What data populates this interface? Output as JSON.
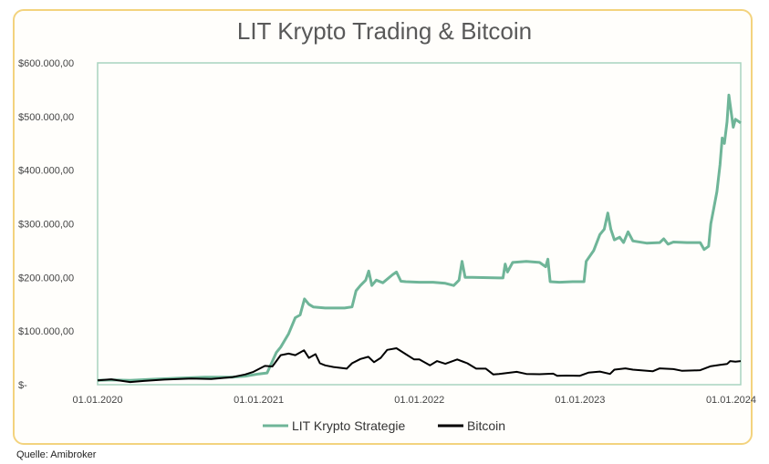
{
  "chart_data": {
    "type": "line",
    "title": "LIT Krypto Trading & Bitcoin",
    "xlabel": "",
    "ylabel": "",
    "ylim": [
      0,
      600000
    ],
    "yticks": [
      0,
      100000,
      200000,
      300000,
      400000,
      500000,
      600000
    ],
    "ytick_labels": [
      "$-",
      "$100.000,00",
      "$200.000,00",
      "$300.000,00",
      "$400.000,00",
      "$500.000,00",
      "$600.000,00"
    ],
    "xlim": [
      "2020-01-01",
      "2024-01-01"
    ],
    "xticks": [
      "2020-01-01",
      "2021-01-01",
      "2022-01-01",
      "2023-01-01",
      "2024-01-01"
    ],
    "xtick_labels": [
      "01.01.2020",
      "01.01.2021",
      "01.01.2022",
      "01.01.2023",
      "01.01.2024"
    ],
    "legend_position": "bottom",
    "grid": false,
    "series": [
      {
        "name": "LIT Krypto Strategie",
        "color": "#6fb598",
        "points": [
          [
            "2020-01-01",
            8000
          ],
          [
            "2020-02-01",
            9000
          ],
          [
            "2020-03-15",
            8000
          ],
          [
            "2020-05-01",
            10000
          ],
          [
            "2020-07-01",
            12000
          ],
          [
            "2020-09-01",
            14000
          ],
          [
            "2020-11-01",
            14000
          ],
          [
            "2020-12-01",
            16000
          ],
          [
            "2021-01-01",
            20000
          ],
          [
            "2021-01-20",
            22000
          ],
          [
            "2021-02-10",
            60000
          ],
          [
            "2021-02-20",
            70000
          ],
          [
            "2021-03-10",
            95000
          ],
          [
            "2021-03-25",
            125000
          ],
          [
            "2021-04-05",
            130000
          ],
          [
            "2021-04-15",
            160000
          ],
          [
            "2021-04-25",
            150000
          ],
          [
            "2021-05-05",
            145000
          ],
          [
            "2021-06-01",
            143000
          ],
          [
            "2021-07-15",
            143000
          ],
          [
            "2021-08-01",
            145000
          ],
          [
            "2021-08-10",
            175000
          ],
          [
            "2021-08-20",
            185000
          ],
          [
            "2021-09-01",
            195000
          ],
          [
            "2021-09-08",
            212000
          ],
          [
            "2021-09-15",
            185000
          ],
          [
            "2021-09-25",
            195000
          ],
          [
            "2021-10-10",
            190000
          ],
          [
            "2021-11-01",
            205000
          ],
          [
            "2021-11-10",
            210000
          ],
          [
            "2021-11-20",
            193000
          ],
          [
            "2021-12-01",
            192000
          ],
          [
            "2022-01-01",
            191000
          ],
          [
            "2022-02-01",
            191000
          ],
          [
            "2022-03-01",
            189000
          ],
          [
            "2022-03-20",
            185000
          ],
          [
            "2022-04-01",
            195000
          ],
          [
            "2022-04-08",
            230000
          ],
          [
            "2022-04-15",
            200000
          ],
          [
            "2022-05-01",
            200000
          ],
          [
            "2022-07-01",
            199000
          ],
          [
            "2022-07-10",
            199000
          ],
          [
            "2022-07-15",
            225000
          ],
          [
            "2022-07-20",
            210000
          ],
          [
            "2022-08-01",
            228000
          ],
          [
            "2022-09-01",
            230000
          ],
          [
            "2022-10-01",
            228000
          ],
          [
            "2022-10-15",
            220000
          ],
          [
            "2022-10-20",
            234000
          ],
          [
            "2022-10-25",
            192000
          ],
          [
            "2022-11-15",
            191000
          ],
          [
            "2022-12-15",
            192000
          ],
          [
            "2023-01-10",
            192000
          ],
          [
            "2023-01-15",
            230000
          ],
          [
            "2023-02-01",
            250000
          ],
          [
            "2023-02-15",
            280000
          ],
          [
            "2023-02-25",
            290000
          ],
          [
            "2023-03-05",
            320000
          ],
          [
            "2023-03-12",
            290000
          ],
          [
            "2023-03-20",
            270000
          ],
          [
            "2023-04-01",
            275000
          ],
          [
            "2023-04-10",
            265000
          ],
          [
            "2023-04-20",
            285000
          ],
          [
            "2023-05-01",
            268000
          ],
          [
            "2023-06-01",
            264000
          ],
          [
            "2023-07-01",
            265000
          ],
          [
            "2023-07-10",
            272000
          ],
          [
            "2023-07-20",
            262000
          ],
          [
            "2023-08-01",
            266000
          ],
          [
            "2023-09-01",
            265000
          ],
          [
            "2023-10-01",
            265000
          ],
          [
            "2023-10-10",
            252000
          ],
          [
            "2023-10-20",
            258000
          ],
          [
            "2023-10-25",
            300000
          ],
          [
            "2023-11-01",
            330000
          ],
          [
            "2023-11-08",
            360000
          ],
          [
            "2023-11-15",
            410000
          ],
          [
            "2023-11-20",
            460000
          ],
          [
            "2023-11-25",
            450000
          ],
          [
            "2023-12-01",
            490000
          ],
          [
            "2023-12-05",
            540000
          ],
          [
            "2023-12-10",
            510000
          ],
          [
            "2023-12-15",
            480000
          ],
          [
            "2023-12-20",
            495000
          ],
          [
            "2024-01-01",
            488000
          ]
        ]
      },
      {
        "name": "Bitcoin",
        "color": "#000000",
        "points": [
          [
            "2020-01-01",
            8000
          ],
          [
            "2020-02-01",
            10000
          ],
          [
            "2020-03-15",
            5000
          ],
          [
            "2020-04-15",
            7000
          ],
          [
            "2020-06-01",
            9500
          ],
          [
            "2020-08-01",
            11500
          ],
          [
            "2020-09-15",
            10500
          ],
          [
            "2020-11-01",
            14000
          ],
          [
            "2020-12-01",
            19000
          ],
          [
            "2020-12-20",
            24000
          ],
          [
            "2021-01-01",
            29000
          ],
          [
            "2021-01-15",
            35000
          ],
          [
            "2021-02-01",
            34000
          ],
          [
            "2021-02-20",
            55000
          ],
          [
            "2021-03-10",
            58000
          ],
          [
            "2021-03-25",
            55000
          ],
          [
            "2021-04-14",
            64000
          ],
          [
            "2021-04-25",
            50000
          ],
          [
            "2021-05-10",
            57000
          ],
          [
            "2021-05-20",
            40000
          ],
          [
            "2021-06-01",
            36000
          ],
          [
            "2021-06-20",
            33000
          ],
          [
            "2021-07-20",
            30000
          ],
          [
            "2021-08-01",
            40000
          ],
          [
            "2021-08-20",
            48000
          ],
          [
            "2021-09-07",
            52000
          ],
          [
            "2021-09-20",
            42000
          ],
          [
            "2021-10-05",
            50000
          ],
          [
            "2021-10-20",
            65000
          ],
          [
            "2021-11-10",
            68000
          ],
          [
            "2021-12-01",
            57000
          ],
          [
            "2021-12-20",
            47000
          ],
          [
            "2022-01-01",
            47000
          ],
          [
            "2022-01-25",
            36000
          ],
          [
            "2022-02-10",
            44000
          ],
          [
            "2022-03-01",
            39000
          ],
          [
            "2022-03-28",
            47000
          ],
          [
            "2022-04-20",
            40000
          ],
          [
            "2022-05-10",
            30000
          ],
          [
            "2022-06-01",
            30000
          ],
          [
            "2022-06-18",
            19000
          ],
          [
            "2022-07-01",
            20000
          ],
          [
            "2022-08-10",
            24000
          ],
          [
            "2022-09-01",
            20000
          ],
          [
            "2022-10-01",
            19500
          ],
          [
            "2022-11-01",
            20500
          ],
          [
            "2022-11-10",
            16500
          ],
          [
            "2022-12-01",
            17000
          ],
          [
            "2022-12-31",
            16500
          ],
          [
            "2023-01-20",
            22500
          ],
          [
            "2023-02-15",
            24500
          ],
          [
            "2023-03-10",
            20000
          ],
          [
            "2023-03-20",
            28000
          ],
          [
            "2023-04-14",
            30500
          ],
          [
            "2023-05-01",
            28000
          ],
          [
            "2023-06-15",
            25000
          ],
          [
            "2023-07-01",
            30500
          ],
          [
            "2023-08-01",
            29000
          ],
          [
            "2023-08-20",
            26000
          ],
          [
            "2023-09-15",
            26500
          ],
          [
            "2023-10-01",
            27000
          ],
          [
            "2023-10-25",
            34500
          ],
          [
            "2023-11-15",
            37000
          ],
          [
            "2023-12-01",
            38500
          ],
          [
            "2023-12-08",
            44000
          ],
          [
            "2023-12-20",
            43000
          ],
          [
            "2024-01-01",
            44000
          ]
        ]
      }
    ]
  },
  "footer": {
    "source": "Quelle: Amibroker"
  }
}
